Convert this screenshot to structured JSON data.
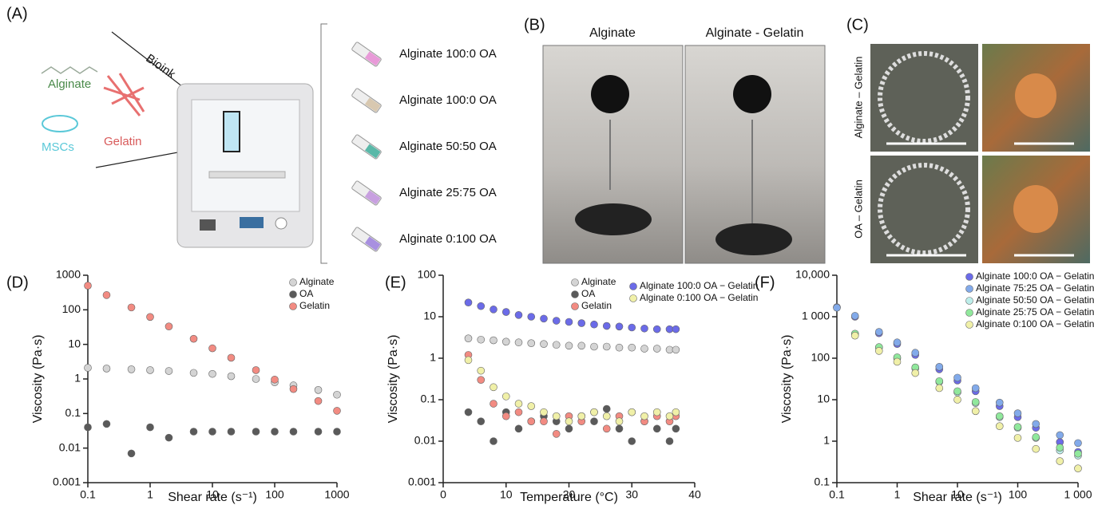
{
  "figure": {
    "panel_a": {
      "label": "(A)",
      "bioink": "Bioink",
      "alginate": "Alginate",
      "mscs": "MSCs",
      "gelatin": "Gelatin",
      "syringes": [
        "Alginate 100:0 OA",
        "Alginate 100:0 OA",
        "Alginate 50:50 OA",
        "Alginate 25:75 OA",
        "Alginate 0:100 OA"
      ]
    },
    "panel_b": {
      "label": "(B)",
      "photos": [
        "Alginate",
        "Alginate - Gelatin"
      ]
    },
    "panel_c": {
      "label": "(C)",
      "rows": [
        "Alginate – Gelatin",
        "OA – Gelatin"
      ]
    }
  },
  "chart_data": [
    {
      "type": "scatter",
      "panel": "(D)",
      "x_label": "Shear rate (s⁻¹)",
      "y_label": "Viscosity (Pa·s)",
      "xlog": true,
      "ylog": true,
      "xlim": [
        0.1,
        1000
      ],
      "ylim": [
        0.001,
        1000
      ],
      "xticks": [
        0.1,
        1,
        10,
        100,
        1000
      ],
      "yticks": [
        0.001,
        0.01,
        0.1,
        1,
        10,
        100,
        1000
      ],
      "x": [
        0.1,
        0.2,
        0.5,
        1,
        2,
        5,
        10,
        20,
        50,
        100,
        200,
        500,
        1000
      ],
      "series": [
        {
          "name": "Alginate",
          "color": "#d4d4d4",
          "values": [
            2.1,
            2.0,
            1.9,
            1.8,
            1.7,
            1.5,
            1.4,
            1.2,
            1.0,
            0.8,
            0.65,
            0.48,
            0.35
          ]
        },
        {
          "name": "OA",
          "color": "#5a5a5a",
          "values": [
            0.04,
            0.05,
            0.007,
            0.04,
            0.02,
            0.03,
            0.03,
            0.03,
            0.03,
            0.03,
            0.03,
            0.03,
            0.03
          ]
        },
        {
          "name": "Gelatin",
          "color": "#f28b82",
          "values": [
            500,
            267,
            117,
            62,
            33,
            14.5,
            7.7,
            4.1,
            1.8,
            0.96,
            0.51,
            0.23,
            0.12
          ]
        }
      ]
    },
    {
      "type": "scatter",
      "panel": "(E)",
      "x_label": "Temperature (°C)",
      "y_label": "Viscosity (Pa·s)",
      "xlog": false,
      "ylog": true,
      "xlim": [
        0,
        40
      ],
      "ylim": [
        0.001,
        100
      ],
      "xticks": [
        0,
        10,
        20,
        30,
        40
      ],
      "yticks": [
        0.001,
        0.01,
        0.1,
        1,
        10,
        100
      ],
      "x": [
        4,
        6,
        8,
        10,
        12,
        14,
        16,
        18,
        20,
        22,
        24,
        26,
        28,
        30,
        32,
        34,
        36,
        37
      ],
      "series": [
        {
          "name": "Alginate",
          "color": "#d4d4d4",
          "values": [
            3,
            2.8,
            2.7,
            2.5,
            2.4,
            2.3,
            2.2,
            2.1,
            2,
            2,
            1.9,
            1.9,
            1.8,
            1.8,
            1.7,
            1.7,
            1.6,
            1.6
          ]
        },
        {
          "name": "OA",
          "color": "#5a5a5a",
          "values": [
            0.05,
            0.03,
            0.01,
            0.05,
            0.02,
            0.03,
            0.04,
            0.03,
            0.02,
            0.04,
            0.03,
            0.06,
            0.02,
            0.01,
            0.03,
            0.02,
            0.01,
            0.02
          ]
        },
        {
          "name": "Gelatin",
          "color": "#f28b82",
          "values": [
            1.2,
            0.3,
            0.08,
            0.04,
            0.05,
            0.03,
            0.03,
            0.015,
            0.04,
            0.03,
            0.05,
            0.02,
            0.04,
            0.05,
            0.03,
            0.04,
            0.03,
            0.04
          ]
        },
        {
          "name": "Alginate 100:0 OA − Gelatin",
          "color": "#6b6be8",
          "values": [
            22,
            18,
            15,
            13,
            11,
            10,
            9,
            8,
            7.5,
            7,
            6.5,
            6,
            5.8,
            5.5,
            5.2,
            5,
            5,
            5
          ]
        },
        {
          "name": "Alginate 0:100 OA − Gelatin",
          "color": "#f0f0a8",
          "values": [
            0.9,
            0.5,
            0.2,
            0.12,
            0.08,
            0.07,
            0.05,
            0.04,
            0.03,
            0.04,
            0.05,
            0.04,
            0.03,
            0.05,
            0.04,
            0.05,
            0.04,
            0.05
          ]
        }
      ]
    },
    {
      "type": "scatter",
      "panel": "(F)",
      "x_label": "Shear rate (s⁻¹)",
      "y_label": "Viscosity (Pa·s)",
      "xlog": true,
      "ylog": true,
      "xlim": [
        0.1,
        1000
      ],
      "ylim": [
        0.1,
        10000
      ],
      "xticks": [
        0.1,
        1,
        10,
        100,
        {
          "value": 1000,
          "label": "1 000"
        }
      ],
      "yticks": [
        0.1,
        1,
        10,
        100,
        {
          "value": 1000,
          "label": "1 000"
        },
        {
          "value": 10000,
          "label": "10,000"
        }
      ],
      "x": [
        0.1,
        0.2,
        0.5,
        1,
        2,
        5,
        10,
        20,
        50,
        100,
        200,
        500,
        1000
      ],
      "series": [
        {
          "name": "Alginate 100:0 OA − Gelatin",
          "color": "#6b6be8",
          "values": [
            1700,
            1000,
            400,
            220,
            120,
            54,
            29,
            16,
            7,
            3.8,
            2.1,
            0.95,
            0.55
          ]
        },
        {
          "name": "Alginate 75:25 OA − Gelatin",
          "color": "#82aaea",
          "values": [
            1650,
            1050,
            430,
            240,
            135,
            62,
            34,
            19,
            8.5,
            4.7,
            2.6,
            1.4,
            0.9
          ]
        },
        {
          "name": "Alginate 50:50 OA − Gelatin",
          "color": "#bdeeea",
          "values": [
            null,
            380,
            180,
            100,
            57,
            27,
            15,
            8.3,
            3.8,
            2.1,
            1.2,
            0.6,
            0.45
          ]
        },
        {
          "name": "Alginate 25:75 OA − Gelatin",
          "color": "#90e89c",
          "values": [
            null,
            390,
            185,
            105,
            60,
            28,
            16,
            8.8,
            4,
            2.2,
            1.25,
            0.7,
            0.5
          ]
        },
        {
          "name": "Alginate 0:100 OA − Gelatin",
          "color": "#f0f0a8",
          "values": [
            null,
            350,
            150,
            82,
            44,
            19,
            10,
            5.3,
            2.3,
            1.2,
            0.65,
            0.33,
            0.22
          ]
        }
      ]
    }
  ]
}
